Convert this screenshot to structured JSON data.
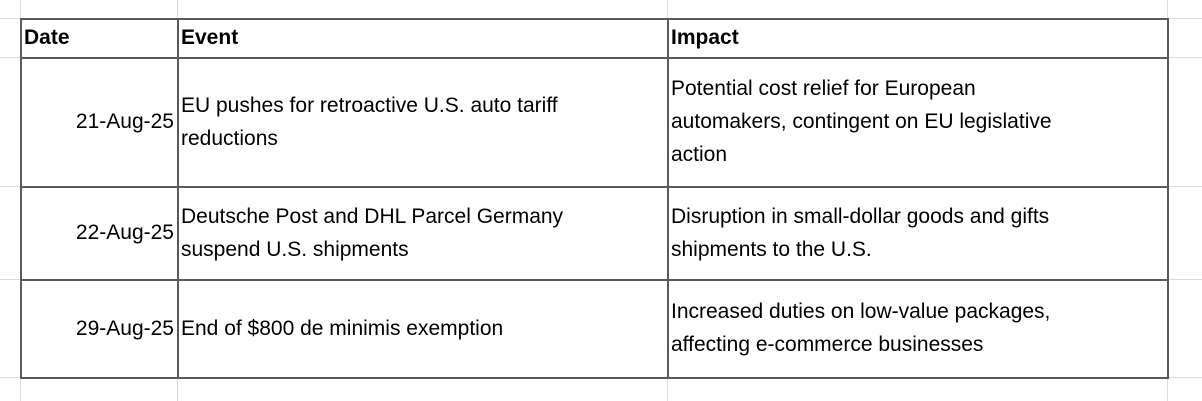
{
  "table": {
    "header": [
      "Date",
      "Event",
      "Impact"
    ],
    "rows": [
      {
        "date": "21-Aug-25",
        "event": [
          "EU pushes for retroactive U.S. auto tariff",
          "reductions"
        ],
        "impact": [
          "Potential cost relief for European",
          "automakers, contingent on EU legislative",
          "action"
        ]
      },
      {
        "date": "22-Aug-25",
        "event": [
          "Deutsche Post and DHL Parcel Germany",
          "suspend U.S. shipments"
        ],
        "impact": [
          "Disruption in small-dollar goods and gifts",
          "shipments to the U.S."
        ]
      },
      {
        "date": "29-Aug-25",
        "event": [
          "End of $800 de minimis exemption"
        ],
        "impact": [
          "Increased duties on low-value packages,",
          "affecting e-commerce businesses"
        ]
      }
    ]
  }
}
